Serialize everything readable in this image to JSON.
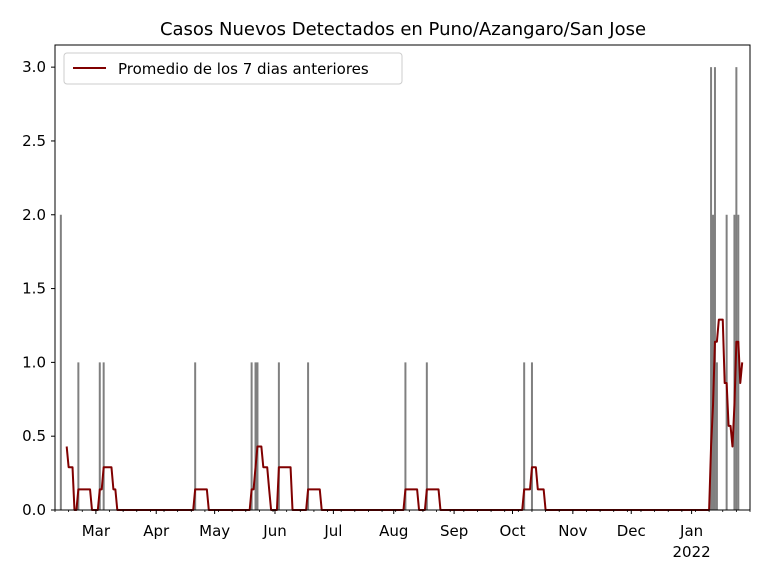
{
  "chart_data": {
    "type": "bar",
    "title": "Casos Nuevos Detectados en Puno/Azangaro/San Jose",
    "xlabel": "",
    "ylabel": "",
    "x_range": [
      "2021-02-08",
      "2022-01-31"
    ],
    "ylim": [
      0,
      3.15
    ],
    "grid": false,
    "legend_position": "top-left",
    "colors": {
      "bars": "#808080",
      "line": "#800000"
    },
    "y_ticks": [
      {
        "value": 0.0,
        "label": "0.0"
      },
      {
        "value": 0.5,
        "label": "0.5"
      },
      {
        "value": 1.0,
        "label": "1.0"
      },
      {
        "value": 1.5,
        "label": "1.5"
      },
      {
        "value": 2.0,
        "label": "2.0"
      },
      {
        "value": 2.5,
        "label": "2.5"
      },
      {
        "value": 3.0,
        "label": "3.0"
      }
    ],
    "x_ticks": [
      {
        "date": "2021-03-01",
        "label": "Mar"
      },
      {
        "date": "2021-04-01",
        "label": "Apr"
      },
      {
        "date": "2021-05-01",
        "label": "May"
      },
      {
        "date": "2021-06-01",
        "label": "Jun"
      },
      {
        "date": "2021-07-01",
        "label": "Jul"
      },
      {
        "date": "2021-08-01",
        "label": "Aug"
      },
      {
        "date": "2021-09-01",
        "label": "Sep"
      },
      {
        "date": "2021-10-01",
        "label": "Oct"
      },
      {
        "date": "2021-11-01",
        "label": "Nov"
      },
      {
        "date": "2021-12-01",
        "label": "Dec"
      },
      {
        "date": "2022-01-01",
        "label": "Jan",
        "sublabel": "2022"
      }
    ],
    "bars": [
      {
        "date": "2021-02-11",
        "value": 2
      },
      {
        "date": "2021-02-20",
        "value": 1
      },
      {
        "date": "2021-03-03",
        "value": 1
      },
      {
        "date": "2021-03-05",
        "value": 1
      },
      {
        "date": "2021-04-21",
        "value": 1
      },
      {
        "date": "2021-05-20",
        "value": 1
      },
      {
        "date": "2021-05-22",
        "value": 1
      },
      {
        "date": "2021-05-23",
        "value": 1
      },
      {
        "date": "2021-06-03",
        "value": 1
      },
      {
        "date": "2021-06-18",
        "value": 1
      },
      {
        "date": "2021-08-07",
        "value": 1
      },
      {
        "date": "2021-08-18",
        "value": 1
      },
      {
        "date": "2021-10-07",
        "value": 1
      },
      {
        "date": "2021-10-11",
        "value": 1
      },
      {
        "date": "2022-01-11",
        "value": 3
      },
      {
        "date": "2022-01-12",
        "value": 2
      },
      {
        "date": "2022-01-13",
        "value": 3
      },
      {
        "date": "2022-01-14",
        "value": 1
      },
      {
        "date": "2022-01-19",
        "value": 2
      },
      {
        "date": "2022-01-23",
        "value": 2
      },
      {
        "date": "2022-01-24",
        "value": 3
      },
      {
        "date": "2022-01-25",
        "value": 2
      }
    ],
    "series": [
      {
        "name": "Promedio de los 7 dias anteriores",
        "points": [
          [
            "2021-02-14",
            0.43
          ],
          [
            "2021-02-15",
            0.29
          ],
          [
            "2021-02-17",
            0.29
          ],
          [
            "2021-02-18",
            0.0
          ],
          [
            "2021-02-19",
            0.0
          ],
          [
            "2021-02-20",
            0.14
          ],
          [
            "2021-02-26",
            0.14
          ],
          [
            "2021-02-27",
            0.0
          ],
          [
            "2021-03-02",
            0.0
          ],
          [
            "2021-03-03",
            0.14
          ],
          [
            "2021-03-04",
            0.14
          ],
          [
            "2021-03-05",
            0.29
          ],
          [
            "2021-03-09",
            0.29
          ],
          [
            "2021-03-10",
            0.14
          ],
          [
            "2021-03-11",
            0.14
          ],
          [
            "2021-03-12",
            0.0
          ],
          [
            "2021-04-20",
            0.0
          ],
          [
            "2021-04-21",
            0.14
          ],
          [
            "2021-04-27",
            0.14
          ],
          [
            "2021-04-28",
            0.0
          ],
          [
            "2021-05-19",
            0.0
          ],
          [
            "2021-05-20",
            0.14
          ],
          [
            "2021-05-21",
            0.14
          ],
          [
            "2021-05-22",
            0.29
          ],
          [
            "2021-05-23",
            0.43
          ],
          [
            "2021-05-25",
            0.43
          ],
          [
            "2021-05-26",
            0.29
          ],
          [
            "2021-05-28",
            0.29
          ],
          [
            "2021-05-29",
            0.14
          ],
          [
            "2021-05-30",
            0.0
          ],
          [
            "2021-06-02",
            0.0
          ],
          [
            "2021-06-03",
            0.29
          ],
          [
            "2021-06-09",
            0.29
          ],
          [
            "2021-06-10",
            0.0
          ],
          [
            "2021-06-17",
            0.0
          ],
          [
            "2021-06-18",
            0.14
          ],
          [
            "2021-06-24",
            0.14
          ],
          [
            "2021-06-25",
            0.0
          ],
          [
            "2021-08-06",
            0.0
          ],
          [
            "2021-08-07",
            0.14
          ],
          [
            "2021-08-13",
            0.14
          ],
          [
            "2021-08-14",
            0.0
          ],
          [
            "2021-08-17",
            0.0
          ],
          [
            "2021-08-18",
            0.14
          ],
          [
            "2021-08-24",
            0.14
          ],
          [
            "2021-08-25",
            0.0
          ],
          [
            "2021-10-06",
            0.0
          ],
          [
            "2021-10-07",
            0.14
          ],
          [
            "2021-10-10",
            0.14
          ],
          [
            "2021-10-11",
            0.29
          ],
          [
            "2021-10-13",
            0.29
          ],
          [
            "2021-10-14",
            0.14
          ],
          [
            "2021-10-17",
            0.14
          ],
          [
            "2021-10-18",
            0.0
          ],
          [
            "2022-01-10",
            0.0
          ],
          [
            "2022-01-11",
            0.43
          ],
          [
            "2022-01-12",
            0.71
          ],
          [
            "2022-01-13",
            1.14
          ],
          [
            "2022-01-14",
            1.14
          ],
          [
            "2022-01-15",
            1.29
          ],
          [
            "2022-01-17",
            1.29
          ],
          [
            "2022-01-18",
            0.86
          ],
          [
            "2022-01-19",
            0.86
          ],
          [
            "2022-01-20",
            0.57
          ],
          [
            "2022-01-21",
            0.57
          ],
          [
            "2022-01-22",
            0.43
          ],
          [
            "2022-01-23",
            0.71
          ],
          [
            "2022-01-24",
            1.14
          ],
          [
            "2022-01-25",
            1.14
          ],
          [
            "2022-01-26",
            0.86
          ],
          [
            "2022-01-27",
            1.0
          ]
        ]
      }
    ]
  }
}
